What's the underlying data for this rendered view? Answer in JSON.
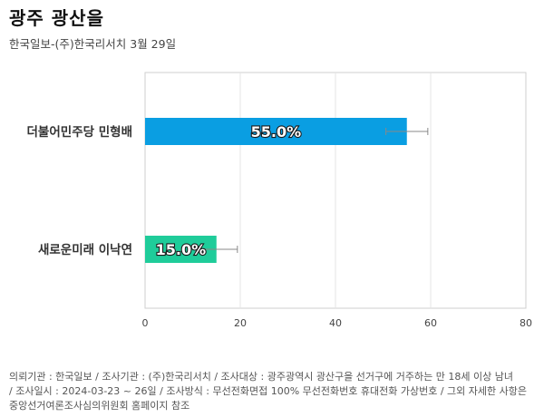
{
  "header": {
    "title": "광주 광산을",
    "subtitle": "한국일보-(주)한국리서치 3월 29일"
  },
  "colors": {
    "axis": "#cfcfcf",
    "grid": "#e6e6e6",
    "error_bar": "#888888"
  },
  "chart_data": {
    "type": "bar",
    "orientation": "horizontal",
    "title": "광주 광산을",
    "categories": [
      "더불어민주당 민형배",
      "새로운미래 이낙연"
    ],
    "values": [
      55.0,
      15.0
    ],
    "value_labels": [
      "55.0%",
      "15.0%"
    ],
    "bar_colors": [
      "#0a9ee2",
      "#1fcc9a"
    ],
    "error_margin": 4.4,
    "xlim": [
      0,
      80
    ],
    "xticks": [
      0,
      20,
      40,
      60,
      80
    ],
    "xtick_labels": [
      "0",
      "20",
      "40",
      "60",
      "80"
    ],
    "grid": true
  },
  "footnote": {
    "lines": [
      "의뢰기관 : 한국일보 / 조사기관 : (주)한국리서치 / 조사대상 : 광주광역시 광산구을 선거구에 거주하는 만 18세 이상 남녀",
      "/ 조사일시 : 2024-03-23 ~ 26일 / 조사방식 : 무선전화면접 100% 무선전화번호 휴대전화 가상번호 / 그외 자세한 사항은",
      "중앙선거여론조사심의위원회 홈페이지 참조"
    ]
  }
}
